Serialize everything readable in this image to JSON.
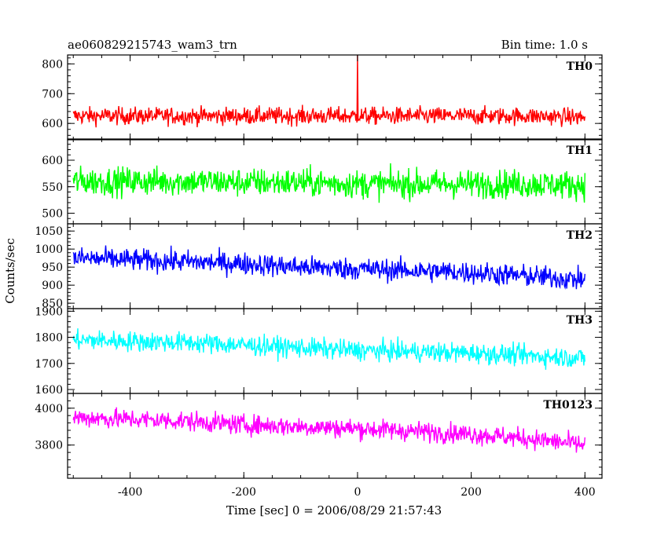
{
  "chart_data": {
    "type": "line",
    "title": "ae060829215743_wam3_trn",
    "subtitle": "Bin time: 1.0 s",
    "xlabel": "Time [sec] 0 = 2006/08/29 21:57:43",
    "ylabel": "Counts/sec",
    "xlim": [
      -510,
      430
    ],
    "x_ticks": [
      -400,
      -200,
      0,
      200,
      400
    ],
    "panels": [
      {
        "name": "TH0",
        "color": "#ff0000",
        "ylim": [
          545,
          830
        ],
        "y_ticks": [
          600,
          700,
          800
        ],
        "series": {
          "x": [
            -500,
            -400,
            -300,
            -200,
            -100,
            0,
            100,
            200,
            300,
            400
          ],
          "mean": [
            625,
            625,
            625,
            625,
            625,
            625,
            625,
            625,
            625,
            620
          ],
          "spread": 38
        },
        "spike": {
          "x": 0,
          "value": 830
        }
      },
      {
        "name": "TH1",
        "color": "#00ff00",
        "ylim": [
          480,
          640
        ],
        "y_ticks": [
          500,
          550,
          600
        ],
        "series": {
          "x": [
            -500,
            -400,
            -300,
            -200,
            -100,
            0,
            100,
            200,
            300,
            400
          ],
          "mean": [
            560,
            560,
            560,
            558,
            558,
            555,
            555,
            555,
            555,
            553
          ],
          "spread": 35
        }
      },
      {
        "name": "TH2",
        "color": "#0000ff",
        "ylim": [
          835,
          1070
        ],
        "y_ticks": [
          850,
          900,
          950,
          1000,
          1050
        ],
        "series": {
          "x": [
            -500,
            -400,
            -300,
            -200,
            -100,
            0,
            100,
            200,
            300,
            400
          ],
          "mean": [
            975,
            970,
            965,
            960,
            950,
            945,
            940,
            935,
            925,
            915
          ],
          "spread": 40
        }
      },
      {
        "name": "TH3",
        "color": "#00ffff",
        "ylim": [
          1585,
          1910
        ],
        "y_ticks": [
          1600,
          1700,
          1800,
          1900
        ],
        "series": {
          "x": [
            -500,
            -400,
            -300,
            -200,
            -100,
            0,
            100,
            200,
            300,
            400
          ],
          "mean": [
            1790,
            1785,
            1780,
            1770,
            1760,
            1750,
            1745,
            1740,
            1730,
            1720
          ],
          "spread": 50
        }
      },
      {
        "name": "TH0123",
        "color": "#ff00ff",
        "ylim": [
          3620,
          4080
        ],
        "y_ticks": [
          3800,
          4000
        ],
        "series": {
          "x": [
            -500,
            -400,
            -300,
            -200,
            -100,
            0,
            100,
            200,
            300,
            400
          ],
          "mean": [
            3950,
            3940,
            3930,
            3910,
            3900,
            3890,
            3875,
            3860,
            3835,
            3800
          ],
          "spread": 70
        }
      }
    ]
  }
}
